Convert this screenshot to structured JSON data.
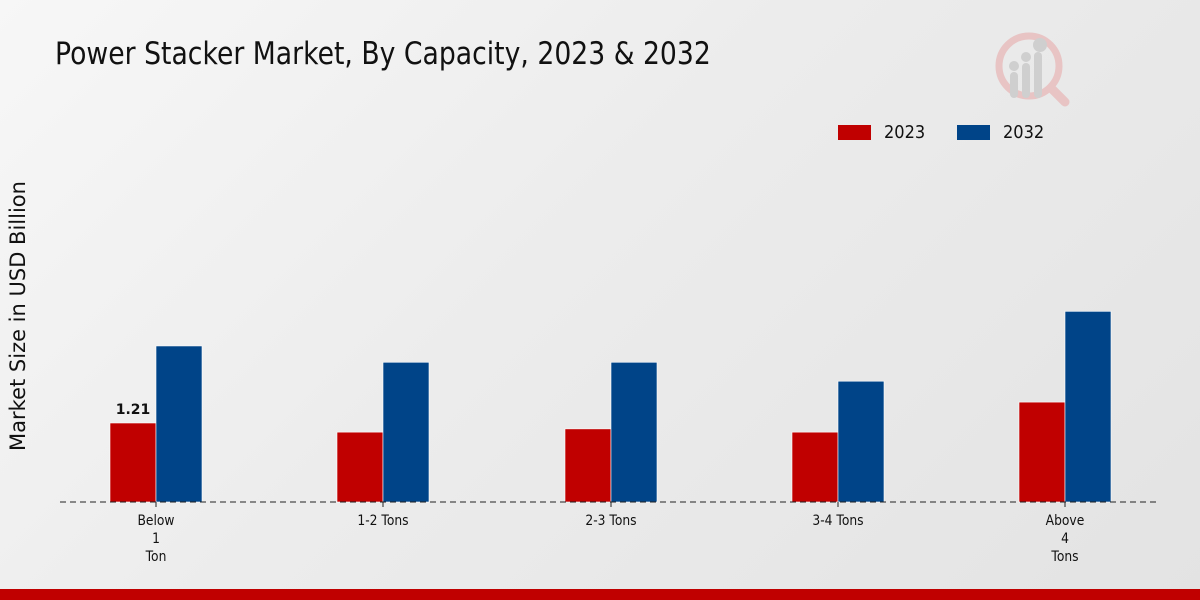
{
  "chart_data": {
    "type": "bar",
    "title": "Power Stacker Market, By Capacity, 2023 & 2032",
    "xlabel": "",
    "ylabel": "Market Size in USD Billion",
    "categories": [
      [
        "Below",
        "1",
        "Ton"
      ],
      [
        "1-2 Tons"
      ],
      [
        "2-3 Tons"
      ],
      [
        "3-4 Tons"
      ],
      [
        "Above",
        "4",
        "Tons"
      ]
    ],
    "series": [
      {
        "name": "2023",
        "color": "#c00000",
        "values": [
          1.21,
          1.07,
          1.12,
          1.07,
          1.53
        ]
      },
      {
        "name": "2032",
        "color": "#004488",
        "values": [
          2.39,
          2.14,
          2.14,
          1.85,
          2.92
        ]
      }
    ],
    "data_labels": [
      {
        "series": 0,
        "index": 0,
        "text": "1.21"
      }
    ],
    "ylim": [
      0,
      3.5
    ],
    "grid": false,
    "legend": "top-right",
    "baseline_style": "dashed"
  },
  "legend": [
    {
      "label": "2023",
      "color": "#c00000"
    },
    {
      "label": "2032",
      "color": "#004488"
    }
  ],
  "footer_color": "#c00000"
}
